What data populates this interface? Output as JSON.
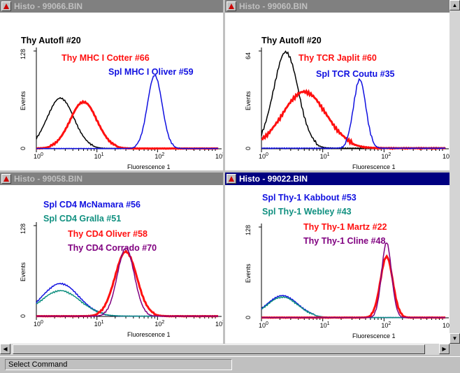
{
  "status_text": "Select Command",
  "colors": {
    "black": "#000000",
    "red": "#ff1010",
    "blue": "#1010e0",
    "teal": "#109080",
    "purple": "#800080"
  },
  "windows": [
    {
      "title": "Histo - 99066.BIN",
      "active": false,
      "y_label": "Events",
      "y_max": "128",
      "x_label": "Fluorescence 1",
      "legend": [
        {
          "text": "Thy Autofl #20",
          "color": "black"
        },
        {
          "text": "Thy MHC I Cotter #66",
          "color": "red"
        },
        {
          "text": "Spl MHC I Oliver #59",
          "color": "blue"
        }
      ],
      "chart_data": {
        "type": "line",
        "x_scale": "log",
        "xlim": [
          1,
          1000
        ],
        "ylim": [
          0,
          128
        ],
        "series": [
          {
            "color": "black",
            "peak_x": 2.5,
            "peak_y": 65,
            "width": 0.22
          },
          {
            "color": "red",
            "peak_x": 6,
            "peak_y": 60,
            "width": 0.22
          },
          {
            "color": "blue",
            "peak_x": 90,
            "peak_y": 95,
            "width": 0.12
          }
        ]
      }
    },
    {
      "title": "Histo - 99060.BIN",
      "active": false,
      "y_label": "Events",
      "y_max": "64",
      "x_label": "Fluorescence 1",
      "legend": [
        {
          "text": "Thy Autofl #20",
          "color": "black"
        },
        {
          "text": "Thy TCR Japlit #60",
          "color": "red"
        },
        {
          "text": "Spl TCR Coutu #35",
          "color": "blue"
        }
      ],
      "chart_data": {
        "type": "line",
        "x_scale": "log",
        "xlim": [
          1,
          1000
        ],
        "ylim": [
          0,
          64
        ],
        "series": [
          {
            "color": "black",
            "peak_x": 2.5,
            "peak_y": 62,
            "width": 0.2
          },
          {
            "color": "red",
            "peak_x": 5,
            "peak_y": 36,
            "width": 0.35
          },
          {
            "color": "blue",
            "peak_x": 40,
            "peak_y": 44,
            "width": 0.1
          }
        ]
      }
    },
    {
      "title": "Histo - 99058.BIN",
      "active": false,
      "y_label": "Events",
      "y_max": "128",
      "x_label": "Fluorescence 1",
      "legend": [
        {
          "text": "Spl CD4 McNamara #56",
          "color": "blue"
        },
        {
          "text": "Spl CD4 Gralla #51",
          "color": "teal"
        },
        {
          "text": "Thy CD4 Oliver #58",
          "color": "red"
        },
        {
          "text": "Thy CD4 Corrado #70",
          "color": "purple"
        }
      ],
      "chart_data": {
        "type": "line",
        "x_scale": "log",
        "xlim": [
          1,
          1000
        ],
        "ylim": [
          0,
          128
        ],
        "series": [
          {
            "color": "blue",
            "peak_x": 2.5,
            "peak_y": 45,
            "width": 0.3
          },
          {
            "color": "teal",
            "peak_x": 2.5,
            "peak_y": 35,
            "width": 0.32
          },
          {
            "color": "red",
            "peak_x": 30,
            "peak_y": 90,
            "width": 0.18
          },
          {
            "color": "purple",
            "peak_x": 30,
            "peak_y": 95,
            "width": 0.14
          }
        ]
      }
    },
    {
      "title": "Histo - 99022.BIN",
      "active": true,
      "y_label": "Events",
      "y_max": "128",
      "x_label": "Fluorescence 1",
      "legend": [
        {
          "text": "Spl Thy-1 Kabbout #53",
          "color": "blue"
        },
        {
          "text": "Spl Thy-1 Webley #43",
          "color": "teal"
        },
        {
          "text": "Thy Thy-1 Martz #22",
          "color": "red"
        },
        {
          "text": "Thy Thy-1 Cline #48",
          "color": "purple"
        }
      ],
      "chart_data": {
        "type": "line",
        "x_scale": "log",
        "xlim": [
          1,
          1000
        ],
        "ylim": [
          0,
          128
        ],
        "series": [
          {
            "color": "blue",
            "peak_x": 2.2,
            "peak_y": 30,
            "width": 0.25
          },
          {
            "color": "teal",
            "peak_x": 2.2,
            "peak_y": 28,
            "width": 0.25
          },
          {
            "color": "red",
            "peak_x": 110,
            "peak_y": 85,
            "width": 0.1
          },
          {
            "color": "purple",
            "peak_x": 110,
            "peak_y": 105,
            "width": 0.08
          }
        ]
      }
    }
  ]
}
